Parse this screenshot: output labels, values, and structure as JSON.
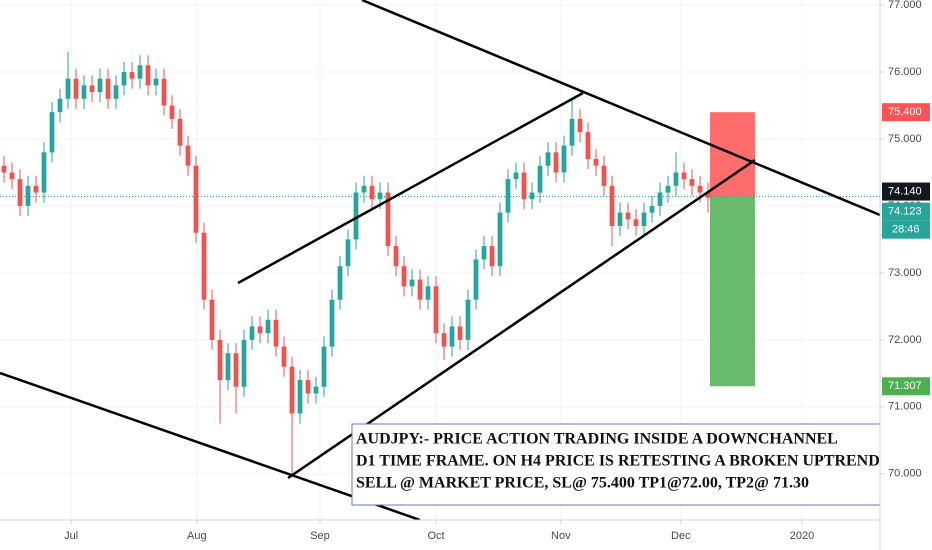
{
  "chart_data": {
    "type": "candlestick",
    "open": [
      74.6,
      74.5,
      74.4,
      74.0,
      74.3,
      74.2,
      74.8,
      75.4,
      75.6,
      75.9,
      75.6,
      75.8,
      75.7,
      75.9,
      75.6,
      75.8,
      76.0,
      75.9,
      76.1,
      75.8,
      75.9,
      75.5,
      75.3,
      74.9,
      74.6,
      73.6,
      72.6,
      72.0,
      71.4,
      71.8,
      71.3,
      72.0,
      72.2,
      72.1,
      72.3,
      71.9,
      71.6,
      70.9,
      71.4,
      71.2,
      71.3,
      71.9,
      72.6,
      73.1,
      73.5,
      74.2,
      74.3,
      74.1,
      74.2,
      73.4,
      73.1,
      72.8,
      72.9,
      72.6,
      72.8,
      72.1,
      71.9,
      72.2,
      72.0,
      72.6,
      73.2,
      73.4,
      73.1,
      73.9,
      74.4,
      74.5,
      74.1,
      74.2,
      74.6,
      74.8,
      74.5,
      74.9,
      75.3,
      75.1,
      74.7,
      74.6,
      74.3,
      73.7,
      73.9,
      73.8,
      73.7,
      73.9,
      74.0,
      74.2,
      74.3,
      74.5,
      74.4,
      74.3,
      74.2
    ],
    "high": [
      74.75,
      74.65,
      74.55,
      74.45,
      74.45,
      74.95,
      75.55,
      75.75,
      76.3,
      76.05,
      75.95,
      75.95,
      76.05,
      76.05,
      75.95,
      76.15,
      76.15,
      76.25,
      76.25,
      76.05,
      76.05,
      75.65,
      75.45,
      75.05,
      74.75,
      73.75,
      72.75,
      72.15,
      71.95,
      71.95,
      72.15,
      72.35,
      72.35,
      72.45,
      72.45,
      72.05,
      71.75,
      71.55,
      71.55,
      71.45,
      72.05,
      72.75,
      73.25,
      73.65,
      74.35,
      74.45,
      74.45,
      74.35,
      74.35,
      73.55,
      73.25,
      73.05,
      73.05,
      72.95,
      72.95,
      72.25,
      72.35,
      72.35,
      72.75,
      73.35,
      73.55,
      73.55,
      74.05,
      74.55,
      74.65,
      74.65,
      74.35,
      74.75,
      74.95,
      74.95,
      75.05,
      75.6,
      75.45,
      75.25,
      74.85,
      74.75,
      74.45,
      74.05,
      74.05,
      73.95,
      74.05,
      74.15,
      74.35,
      74.45,
      74.8,
      74.65,
      74.55,
      74.45,
      74.35
    ],
    "low": [
      74.35,
      74.25,
      73.85,
      73.85,
      74.05,
      74.05,
      74.65,
      75.25,
      75.45,
      75.45,
      75.45,
      75.55,
      75.55,
      75.45,
      75.45,
      75.65,
      75.75,
      75.75,
      75.65,
      75.65,
      75.35,
      75.15,
      74.75,
      74.45,
      73.45,
      72.45,
      71.85,
      70.75,
      71.25,
      70.9,
      71.15,
      71.85,
      71.95,
      71.95,
      71.75,
      71.45,
      70.0,
      70.75,
      71.05,
      71.05,
      71.15,
      71.75,
      72.45,
      72.95,
      73.35,
      74.05,
      73.95,
      73.95,
      73.25,
      72.95,
      72.65,
      72.65,
      72.45,
      72.45,
      71.95,
      71.7,
      71.75,
      71.85,
      71.85,
      72.45,
      73.05,
      72.95,
      72.95,
      73.75,
      74.25,
      73.95,
      73.95,
      74.05,
      74.45,
      74.35,
      74.35,
      74.75,
      74.95,
      74.55,
      74.45,
      74.15,
      73.4,
      73.55,
      73.65,
      73.55,
      73.55,
      73.75,
      73.85,
      74.05,
      74.15,
      74.25,
      74.15,
      74.05,
      73.9
    ],
    "close": [
      74.5,
      74.4,
      74.0,
      74.3,
      74.2,
      74.8,
      75.4,
      75.6,
      75.9,
      75.6,
      75.8,
      75.7,
      75.9,
      75.6,
      75.8,
      76.0,
      75.9,
      76.1,
      75.8,
      75.9,
      75.5,
      75.3,
      74.9,
      74.6,
      73.6,
      72.6,
      72.0,
      71.4,
      71.8,
      71.3,
      72.0,
      72.2,
      72.1,
      72.3,
      71.9,
      71.6,
      70.9,
      71.4,
      71.2,
      71.3,
      71.9,
      72.6,
      73.1,
      73.5,
      74.2,
      74.3,
      74.1,
      74.2,
      73.4,
      73.1,
      72.8,
      72.9,
      72.6,
      72.8,
      72.1,
      71.9,
      72.2,
      72.0,
      72.6,
      73.2,
      73.4,
      73.1,
      73.9,
      74.4,
      74.5,
      74.1,
      74.2,
      74.6,
      74.8,
      74.5,
      74.9,
      75.3,
      75.1,
      74.7,
      74.6,
      74.3,
      73.7,
      73.9,
      73.8,
      73.7,
      73.9,
      74.0,
      74.2,
      74.3,
      74.5,
      74.4,
      74.3,
      74.2,
      74.123
    ],
    "up_color": "#26a69a",
    "down_color": "#ef5350",
    "xlim": [
      -0.5,
      109.5
    ],
    "xticks": [
      {
        "value": 8.4,
        "label": "Jul"
      },
      {
        "value": 24.1,
        "label": "Aug"
      },
      {
        "value": 39.5,
        "label": "Sep"
      },
      {
        "value": 54,
        "label": "Oct"
      },
      {
        "value": 69.6,
        "label": "Nov"
      },
      {
        "value": 84.6,
        "label": "Dec"
      },
      {
        "value": 99.75,
        "label": "2020"
      }
    ],
    "ylim": [
      69.31,
      77.075
    ],
    "yticks": [
      {
        "value": 70,
        "label": "70.000"
      },
      {
        "value": 71,
        "label": "71.000"
      },
      {
        "value": 72,
        "label": "72.000"
      },
      {
        "value": 73,
        "label": "73.000"
      },
      {
        "value": 74,
        "label": "74.000"
      },
      {
        "value": 75,
        "label": "75.000"
      },
      {
        "value": 76,
        "label": "76.000"
      },
      {
        "value": 77,
        "label": "77.000"
      }
    ],
    "grid": true,
    "position": {
      "stop": {
        "value": 75.4,
        "label": "75.400",
        "color": "#ff5252"
      },
      "entry": {
        "value": 74.14,
        "label": "74.140",
        "color": "#131722"
      },
      "target": {
        "value": 71.307,
        "label": "71.307",
        "color": "#4caf50"
      }
    },
    "last_price": {
      "value": 74.123,
      "label": "74.123",
      "color": "#26a69a"
    },
    "countdown": "28:46",
    "note": [
      "AUDJPY:- PRICE ACTION TRADING INSIDE A DOWNCHANNEL",
      "D1 TIME FRAME. ON H4 PRICE IS RETESTING A BROKEN UPTREND",
      "SELL @ MARKET PRICE, SL@ 75.400 TP1@72.00, TP2@ 71.30"
    ]
  }
}
